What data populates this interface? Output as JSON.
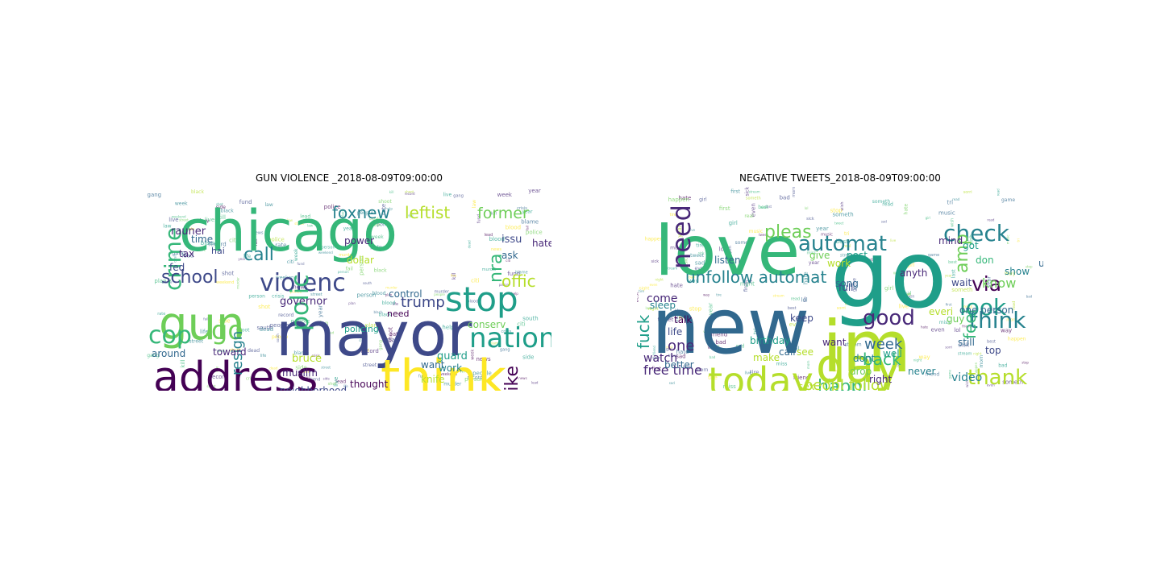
{
  "palette": [
    "#440154",
    "#482878",
    "#3e4989",
    "#31688e",
    "#26828e",
    "#1f9e89",
    "#35b779",
    "#6ece58",
    "#b5de2b",
    "#fde725"
  ],
  "figures": [
    {
      "title": "GUN VIOLENCE _2018-08-09T09:00:00",
      "words": [
        "chicago",
        "mayor",
        "address",
        "gun",
        "think",
        "stop",
        "violenc",
        "nation",
        "crime",
        "cop",
        "school",
        "call",
        "foxnew",
        "leftist",
        "former",
        "trump",
        "polic",
        "go",
        "nra",
        "offic",
        "resign",
        "spike",
        "rauner",
        "issu",
        "governor",
        "bruce",
        "guard",
        "toward",
        "muslim",
        "neighborhood",
        "polysesouvi",
        "mileslunn",
        "knife",
        "thought",
        "conserv",
        "policing",
        "control",
        "hate",
        "dollar",
        "power",
        "ask",
        "want",
        "work",
        "time",
        "tax",
        "hai",
        "fed",
        "around",
        "even",
        "still",
        "need"
      ],
      "filler": [
        "person",
        "shoot",
        "people",
        "kill",
        "weekend",
        "citi",
        "police",
        "south",
        "side",
        "week",
        "news",
        "crisis",
        "murder",
        "life",
        "blame",
        "gang",
        "black",
        "street",
        "live",
        "law",
        "lead",
        "blood",
        "record",
        "fail",
        "year",
        "help",
        "fund",
        "plan",
        "shot",
        "dead",
        "rate"
      ]
    },
    {
      "title": "NEGATIVE TWEETS_2018-08-09T09:00:00",
      "words": [
        "new",
        "go",
        "love",
        "im",
        "day",
        "today",
        "automat",
        "check",
        "need",
        "pleas",
        "unfollow automat",
        "look",
        "good",
        "via",
        "amp",
        "think",
        "free time",
        "know",
        "feel",
        "happi",
        "peopl follow",
        "week",
        "thank",
        "back",
        "video",
        "fuck",
        "watch",
        "come",
        "one",
        "life",
        "talk",
        "see",
        "make",
        "want",
        "better",
        "sleep",
        "sex",
        "guy",
        "one person",
        "wait",
        "top",
        "still",
        "use",
        "give",
        "well",
        "mind",
        "got",
        "don",
        "show",
        "post",
        "anyth",
        "listen",
        "dont",
        "birthday",
        "drop",
        "keep",
        "everi",
        "never",
        "right",
        "full",
        "song",
        "work",
        "call"
      ],
      "filler": [
        "girl",
        "year",
        "night",
        "hate",
        "friend",
        "tweet",
        "stream",
        "live",
        "happen",
        "real",
        "sad",
        "sorri",
        "tire",
        "lol",
        "morn",
        "bad",
        "miss",
        "sick",
        "even",
        "last",
        "tri",
        "way",
        "first",
        "stop",
        "wish",
        "read",
        "music",
        "game",
        "best",
        "someth"
      ]
    }
  ]
}
